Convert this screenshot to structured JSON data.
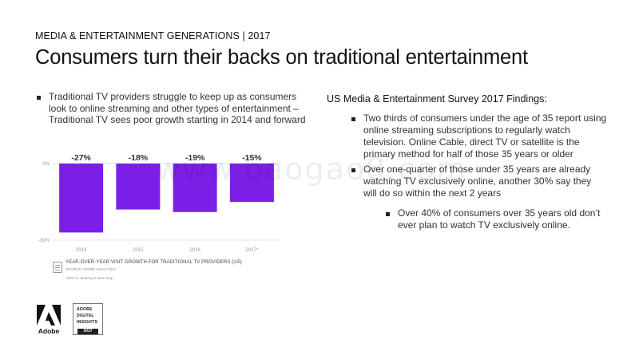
{
  "header": {
    "kicker": "MEDIA & ENTERTAINMENT GENERATIONS | 2017",
    "title": "Consumers turn their backs on traditional entertainment"
  },
  "left": {
    "bullets": [
      "Traditional TV providers struggle to keep up as consumers look to online streaming and other types of entertainment – Traditional TV sees poor growth starting in 2014 and forward"
    ]
  },
  "right": {
    "heading": "US Media & Entertainment Survey 2017 Findings:",
    "bullets": [
      "Two thirds of consumers under the age of 35 report using online streaming subscriptions to regularly watch television. Online Cable, direct TV or satellite is the primary method for half of those 35 years or older",
      "Over one-quarter of those under 35 years are already watching TV exclusively online, another 30% say they will do so within the next 2 years"
    ],
    "sub_bullets": [
      "Over 40% of consumers over 35 years old don’t ever plan to watch TV exclusively online."
    ]
  },
  "chart_data": {
    "type": "bar",
    "categories": [
      "2014",
      "2015",
      "2016",
      "2017*"
    ],
    "values": [
      -27,
      -18,
      -19,
      -15
    ],
    "data_labels": [
      "-27%",
      "-18%",
      "-19%",
      "-15%"
    ],
    "y_tick_labels": [
      "0%",
      "-30%"
    ],
    "ylim": [
      -30,
      0
    ],
    "grid": false,
    "bar_color": "#7b1fe6",
    "title": "YEAR-OVER-YEAR VISIT GROWTH FOR TRADITIONAL TV PROVIDERS (US)",
    "source": "SOURCE: ADOBE ANALYTICS",
    "note": "*2017 is January to June only"
  },
  "footer": {
    "adobe_logo_text": "Adobe",
    "badge_lines": [
      "ADOBE",
      "DIGITAL",
      "INSIGHTS"
    ],
    "badge_year": "2017"
  },
  "watermark": "www.baogao8.com"
}
